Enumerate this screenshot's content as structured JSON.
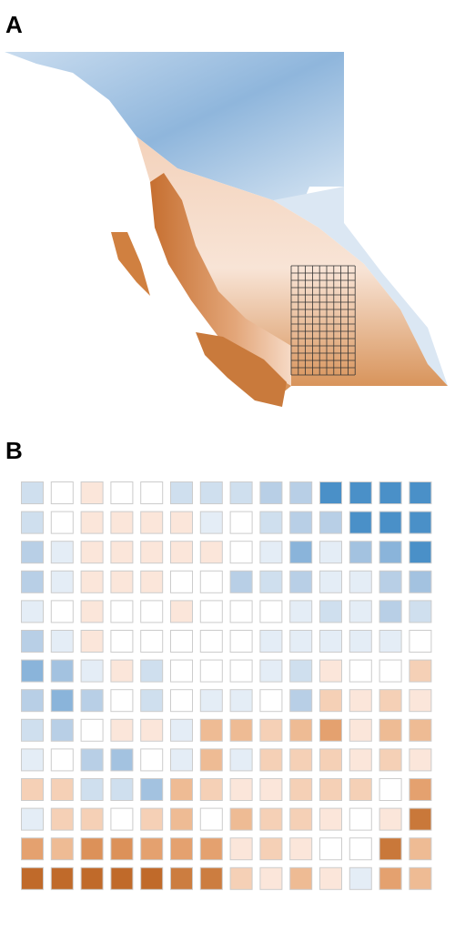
{
  "panels": {
    "a": {
      "label": "A"
    },
    "b": {
      "label": "B",
      "cells": [
        [
          "#cfdfee",
          "#ffffff",
          "#fbe6da",
          "#ffffff",
          "#ffffff",
          "#cfdfee",
          "#cfdfee",
          "#cfdfee",
          "#b8cfe6",
          "#b8cfe6",
          "#4a90c8",
          "#4a90c8",
          "#4a90c8",
          "#4a90c8"
        ],
        [
          "#cfdfee",
          "#ffffff",
          "#fbe6da",
          "#fbe6da",
          "#fbe6da",
          "#fbe6da",
          "#e4edf6",
          "#ffffff",
          "#cfdfee",
          "#b8cfe6",
          "#b8cfe6",
          "#4a90c8",
          "#4a90c8",
          "#4a90c8"
        ],
        [
          "#b8cfe6",
          "#e4edf6",
          "#fbe6da",
          "#fbe6da",
          "#fbe6da",
          "#fbe6da",
          "#fbe6da",
          "#ffffff",
          "#e4edf6",
          "#8ab4da",
          "#e4edf6",
          "#a3c2e0",
          "#8ab4da",
          "#4a90c8"
        ],
        [
          "#b8cfe6",
          "#e4edf6",
          "#fbe6da",
          "#fbe6da",
          "#fbe6da",
          "#ffffff",
          "#ffffff",
          "#b8cfe6",
          "#cfdfee",
          "#b8cfe6",
          "#e4edf6",
          "#e4edf6",
          "#b8cfe6",
          "#a3c2e0"
        ],
        [
          "#e4edf6",
          "#ffffff",
          "#fbe6da",
          "#ffffff",
          "#ffffff",
          "#fbe6da",
          "#ffffff",
          "#ffffff",
          "#ffffff",
          "#e4edf6",
          "#cfdfee",
          "#e4edf6",
          "#b8cfe6",
          "#cfdfee"
        ],
        [
          "#b8cfe6",
          "#e4edf6",
          "#fbe6da",
          "#ffffff",
          "#ffffff",
          "#ffffff",
          "#ffffff",
          "#ffffff",
          "#e4edf6",
          "#e4edf6",
          "#e4edf6",
          "#e4edf6",
          "#e4edf6",
          "#ffffff"
        ],
        [
          "#8ab4da",
          "#a3c2e0",
          "#e4edf6",
          "#fbe6da",
          "#cfdfee",
          "#ffffff",
          "#ffffff",
          "#ffffff",
          "#e4edf6",
          "#cfdfee",
          "#fbe6da",
          "#ffffff",
          "#ffffff",
          "#f5d0b6"
        ],
        [
          "#b8cfe6",
          "#8ab4da",
          "#b8cfe6",
          "#ffffff",
          "#cfdfee",
          "#ffffff",
          "#e4edf6",
          "#e4edf6",
          "#ffffff",
          "#b8cfe6",
          "#f5d0b6",
          "#fbe6da",
          "#f5d0b6",
          "#fbe6da"
        ],
        [
          "#cfdfee",
          "#b8cfe6",
          "#ffffff",
          "#fbe6da",
          "#fbe6da",
          "#e4edf6",
          "#eebb94",
          "#eebb94",
          "#f5d0b6",
          "#eebb94",
          "#e4a16f",
          "#fbe6da",
          "#eebb94",
          "#eebb94"
        ],
        [
          "#e4edf6",
          "#ffffff",
          "#b8cfe6",
          "#a3c2e0",
          "#ffffff",
          "#e4edf6",
          "#eebb94",
          "#e4edf6",
          "#f5d0b6",
          "#f5d0b6",
          "#f5d0b6",
          "#fbe6da",
          "#f5d0b6",
          "#fbe6da"
        ],
        [
          "#f5d0b6",
          "#f5d0b6",
          "#cfdfee",
          "#cfdfee",
          "#a3c2e0",
          "#eebb94",
          "#f5d0b6",
          "#fbe6da",
          "#fbe6da",
          "#f5d0b6",
          "#f5d0b6",
          "#f5d0b6",
          "#ffffff",
          "#e4a16f"
        ],
        [
          "#e4edf6",
          "#f5d0b6",
          "#f5d0b6",
          "#ffffff",
          "#f5d0b6",
          "#eebb94",
          "#ffffff",
          "#eebb94",
          "#f5d0b6",
          "#f5d0b6",
          "#fbe6da",
          "#ffffff",
          "#fbe6da",
          "#c9783a"
        ],
        [
          "#e4a16f",
          "#eebb94",
          "#dc9159",
          "#dc9159",
          "#e4a16f",
          "#e4a16f",
          "#e4a16f",
          "#fbe6da",
          "#f5d0b6",
          "#fbe6da",
          "#ffffff",
          "#ffffff",
          "#c9783a",
          "#eebb94"
        ],
        [
          "#c06a2a",
          "#c06a2a",
          "#c06a2a",
          "#c06a2a",
          "#c06a2a",
          "#cc7d40",
          "#cc7d40",
          "#f5d0b6",
          "#fbe6da",
          "#eebb94",
          "#fbe6da",
          "#e4edf6",
          "#e4a16f",
          "#eebb94"
        ]
      ]
    }
  }
}
